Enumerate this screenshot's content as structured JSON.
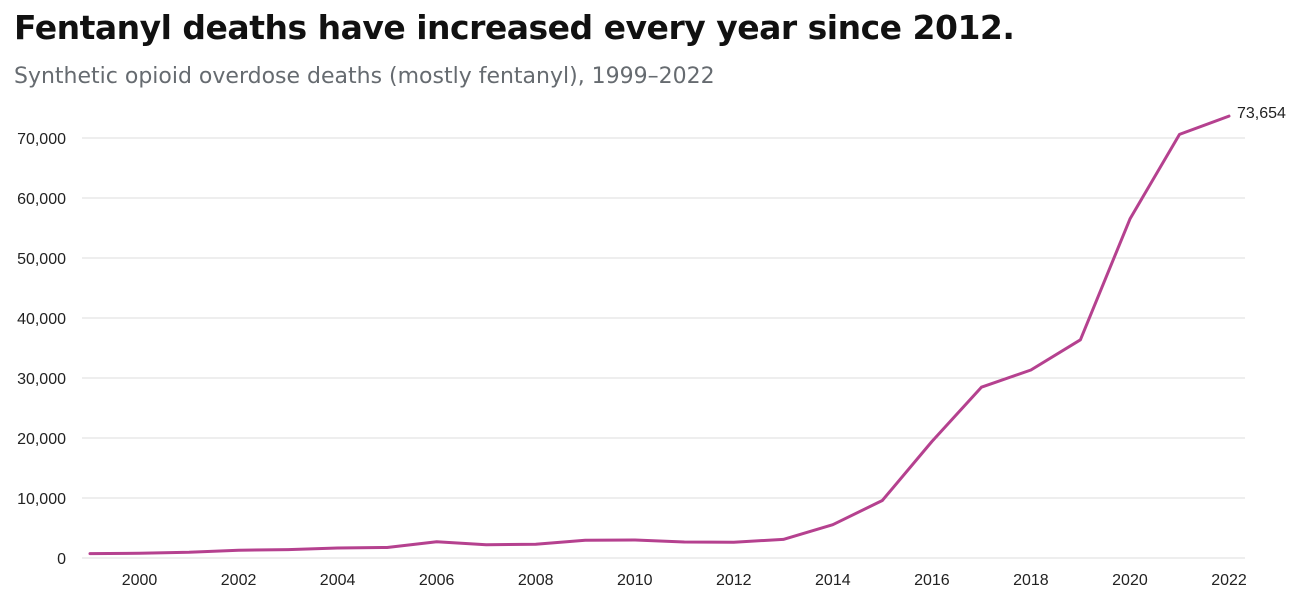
{
  "chart_data": {
    "type": "line",
    "title": "Fentanyl deaths have increased every year since 2012.",
    "subtitle": "Synthetic opioid overdose deaths (mostly fentanyl), 1999–2022",
    "xlabel": "",
    "ylabel": "",
    "xlim": [
      1999,
      2022
    ],
    "ylim": [
      0,
      75000
    ],
    "x_ticks": [
      2000,
      2002,
      2004,
      2006,
      2008,
      2010,
      2012,
      2014,
      2016,
      2018,
      2020,
      2022
    ],
    "x_tick_labels": [
      "2000",
      "2002",
      "2004",
      "2006",
      "2008",
      "2010",
      "2012",
      "2014",
      "2016",
      "2018",
      "2020",
      "2022"
    ],
    "y_ticks": [
      0,
      10000,
      20000,
      30000,
      40000,
      50000,
      60000,
      70000
    ],
    "y_tick_labels": [
      "0",
      "10,000",
      "20,000",
      "30,000",
      "40,000",
      "50,000",
      "60,000",
      "70,000"
    ],
    "grid": true,
    "legend": "none",
    "line_color": "#b5418f",
    "grid_color": "#dddddd",
    "end_label": "73,654",
    "series": [
      {
        "x": [
          1999,
          2000,
          2001,
          2002,
          2003,
          2004,
          2005,
          2006,
          2007,
          2008,
          2009,
          2010,
          2011,
          2012,
          2013,
          2014,
          2015,
          2016,
          2017,
          2018,
          2019,
          2020,
          2021,
          2022
        ],
        "values": [
          730,
          782,
          957,
          1295,
          1400,
          1664,
          1742,
          2707,
          2213,
          2306,
          2946,
          3007,
          2666,
          2628,
          3105,
          5544,
          9580,
          19413,
          28466,
          31335,
          36359,
          56516,
          70601,
          73654
        ]
      }
    ]
  }
}
